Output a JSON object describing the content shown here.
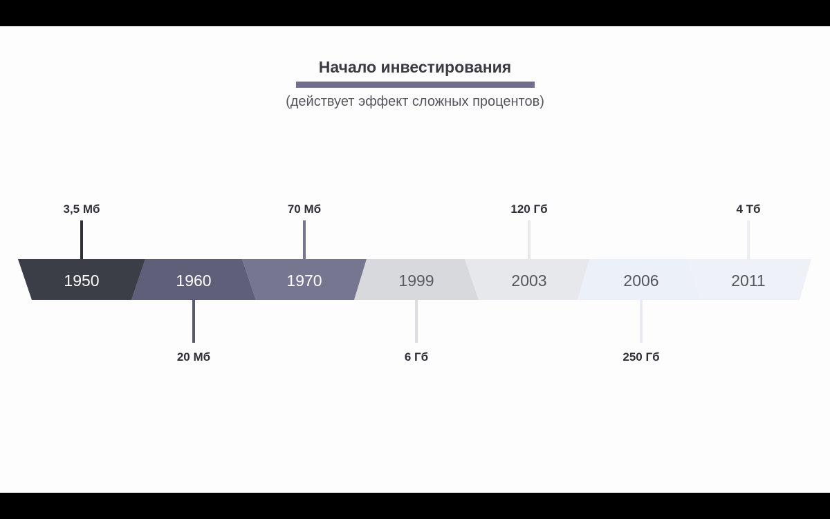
{
  "header": {
    "title": "Начало инвестирования",
    "subtitle": "(действует эффект сложных процентов)"
  },
  "timeline": {
    "segments": [
      {
        "year": "1950",
        "capacity": "3,5 Мб",
        "side": "top",
        "color": "#3b3d47",
        "text_color": "#ffffff",
        "line_color": "#2f3038"
      },
      {
        "year": "1960",
        "capacity": "20 Мб",
        "side": "bottom",
        "color": "#5f5f79",
        "text_color": "#ffffff",
        "line_color": "#595970"
      },
      {
        "year": "1970",
        "capacity": "70 Мб",
        "side": "top",
        "color": "#767690",
        "text_color": "#ffffff",
        "line_color": "#76768c"
      },
      {
        "year": "1999",
        "capacity": "6 Гб",
        "side": "bottom",
        "color": "#d8d9dd",
        "text_color": "#5a5a66",
        "line_color": "#dcdde1"
      },
      {
        "year": "2003",
        "capacity": "120 Гб",
        "side": "top",
        "color": "#e7e8ec",
        "text_color": "#55555f",
        "line_color": "#e6e7eb"
      },
      {
        "year": "2006",
        "capacity": "250 Гб",
        "side": "bottom",
        "color": "#ecf0f8",
        "text_color": "#55555f",
        "line_color": "#e8ebf2"
      },
      {
        "year": "2011",
        "capacity": "4 Тб",
        "side": "top",
        "color": "#eef1f8",
        "text_color": "#55555f",
        "line_color": "#eceef4"
      }
    ]
  }
}
